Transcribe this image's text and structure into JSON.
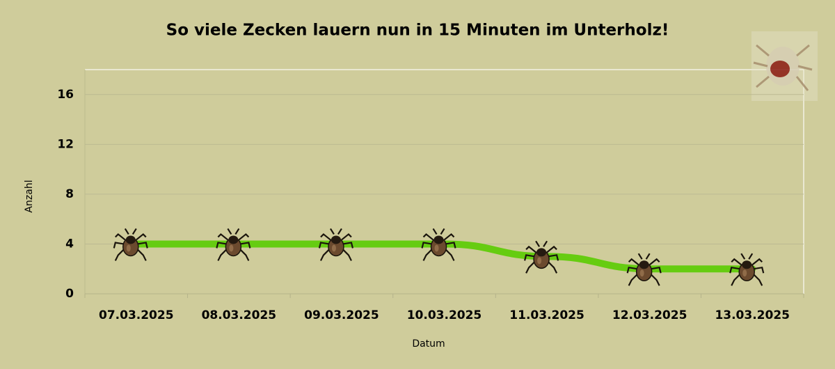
{
  "chart_data": {
    "type": "line",
    "title": "So viele Zecken lauern nun in 15 Minuten im Unterholz!",
    "x_label": "Datum",
    "y_label": "Anzahl",
    "categories": [
      "07.03.2025",
      "08.03.2025",
      "09.03.2025",
      "10.03.2025",
      "11.03.2025",
      "12.03.2025",
      "13.03.2025"
    ],
    "values": [
      4,
      4,
      4,
      4,
      3,
      2,
      2
    ],
    "color": "#66cc11",
    "ylim": [
      0,
      18
    ],
    "yticks": [
      0,
      4,
      8,
      12,
      16
    ],
    "grid": true
  }
}
